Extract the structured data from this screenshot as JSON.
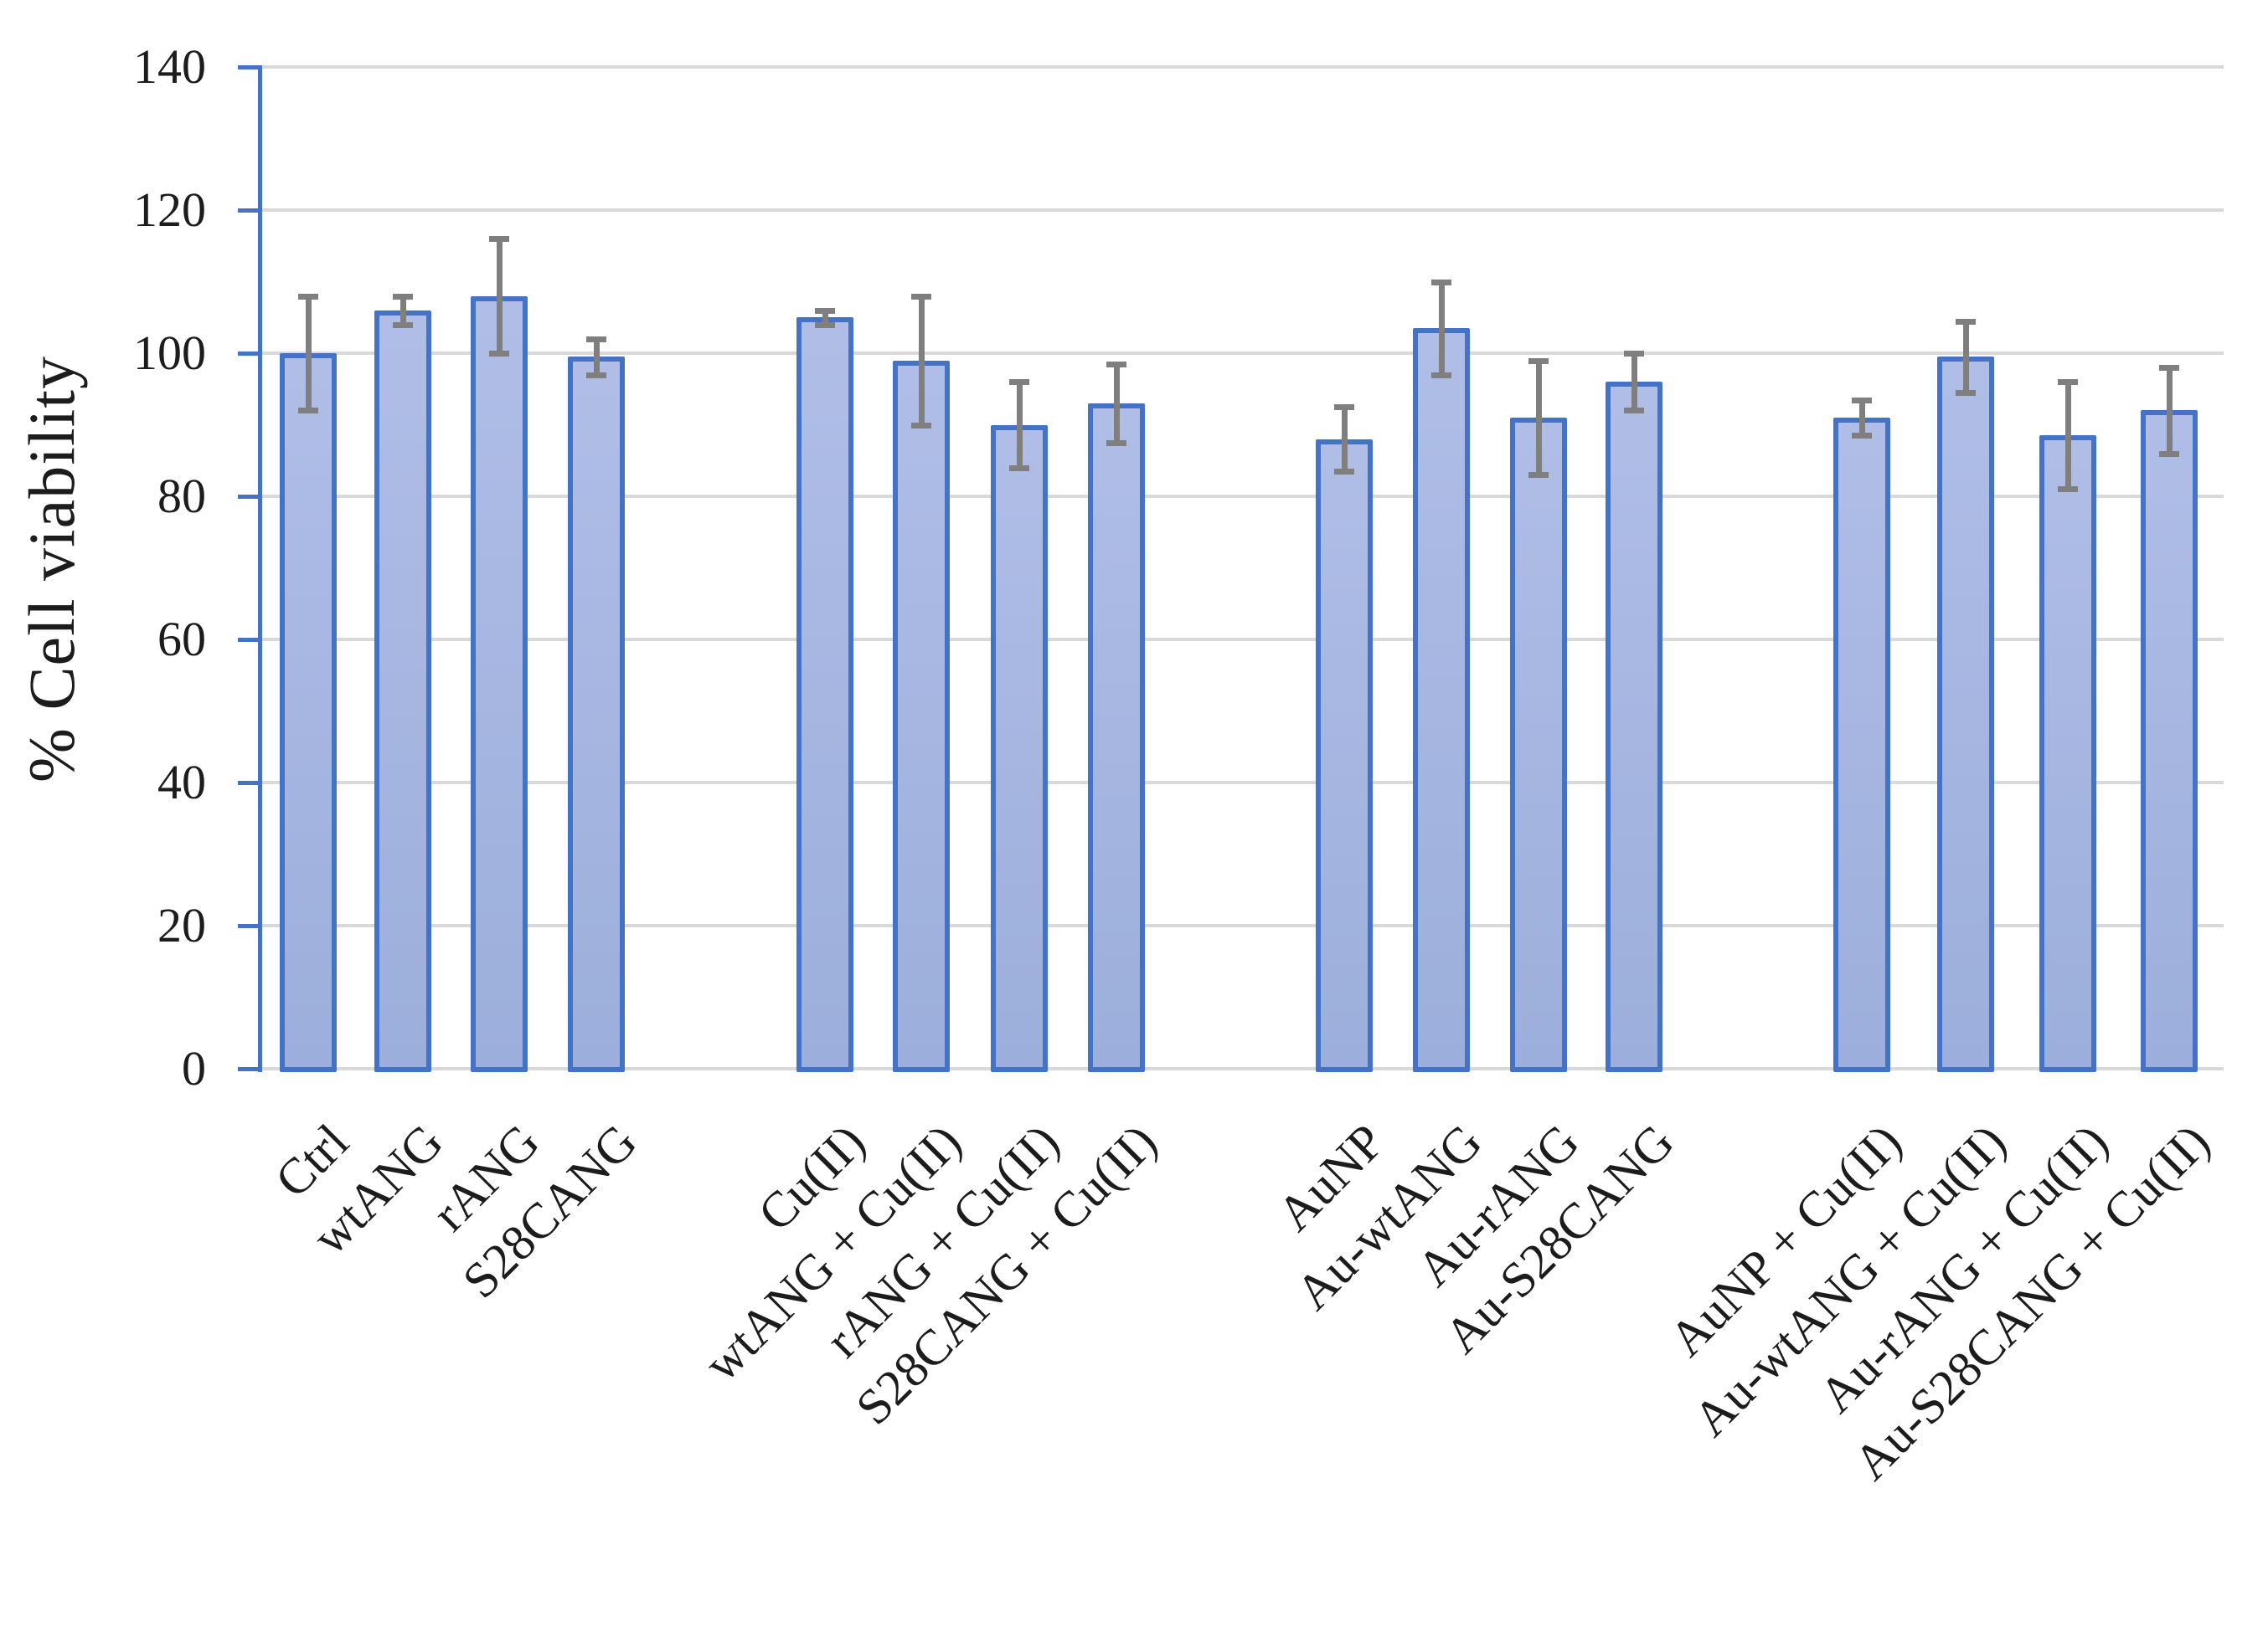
{
  "chart_data": {
    "type": "bar",
    "title": "",
    "xlabel": "",
    "ylabel": "% Cell viability",
    "ylim": [
      0,
      140
    ],
    "yticks": [
      0,
      20,
      40,
      60,
      80,
      100,
      120,
      140
    ],
    "grid": true,
    "legend": false,
    "categories": [
      "Ctrl",
      "wtANG",
      "rANG",
      "S28CANG",
      "Cu(II)",
      "wtANG + Cu(II)",
      "rANG + Cu(II)",
      "S28CANG + Cu(II)",
      "AuNP",
      "Au-wtANG",
      "Au-rANG",
      "Au-S28CANG",
      "AuNP + Cu(II)",
      "Au-wtANG + Cu(II)",
      "Au-rANG + Cu(II)",
      "Au-S28CANG + Cu(II)"
    ],
    "values": [
      100,
      106,
      108,
      99.5,
      105,
      99,
      90,
      93,
      88,
      103.5,
      91,
      96,
      91,
      99.5,
      88.5,
      92
    ],
    "errors": [
      8,
      2,
      8,
      2.5,
      1,
      9,
      6,
      5.5,
      4.5,
      6.5,
      8,
      4,
      2.5,
      5,
      7.5,
      6
    ],
    "groups": [
      [
        "Ctrl",
        "wtANG",
        "rANG",
        "S28CANG"
      ],
      [
        "Cu(II)",
        "wtANG + Cu(II)",
        "rANG + Cu(II)",
        "S28CANG + Cu(II)"
      ],
      [
        "AuNP",
        "Au-wtANG",
        "Au-rANG",
        "Au-S28CANG"
      ],
      [
        "AuNP + Cu(II)",
        "Au-wtANG + Cu(II)",
        "Au-rANG + Cu(II)",
        "Au-S28CANG + Cu(II)"
      ]
    ]
  },
  "colors": {
    "background": "#ffffff",
    "text": "#1c1c1c",
    "bar_fill_light": "#b0bee7",
    "bar_fill_dark": "#9caedb",
    "bar_border": "#4472c4",
    "error_bar": "#7f7f7f",
    "gridline": "#d9d9d9",
    "axis_line": "#4472c4"
  }
}
